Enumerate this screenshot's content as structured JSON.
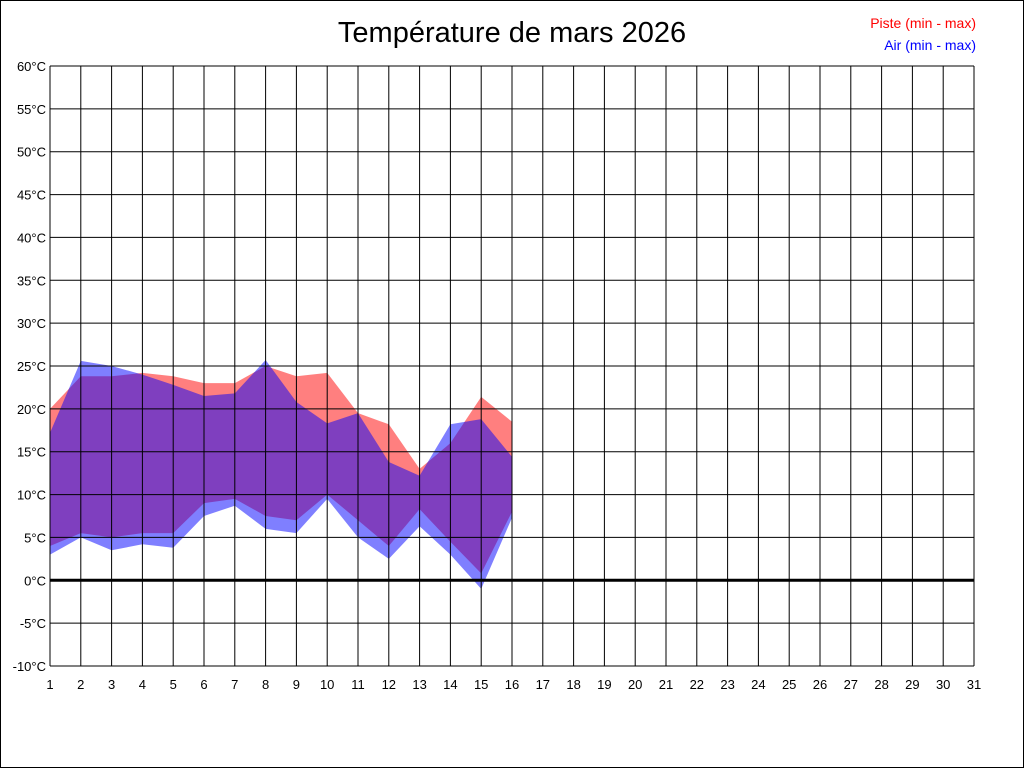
{
  "chart_data": {
    "type": "area",
    "title": "Température de mars 2026",
    "x": [
      1,
      2,
      3,
      4,
      5,
      6,
      7,
      8,
      9,
      10,
      11,
      12,
      13,
      14,
      15,
      16,
      17,
      18,
      19,
      20,
      21,
      22,
      23,
      24,
      25,
      26,
      27,
      28,
      29,
      30,
      31
    ],
    "x_tick_labels": [
      "1",
      "2",
      "3",
      "4",
      "5",
      "6",
      "7",
      "8",
      "9",
      "10",
      "11",
      "12",
      "13",
      "14",
      "15",
      "16",
      "17",
      "18",
      "19",
      "20",
      "21",
      "22",
      "23",
      "24",
      "25",
      "26",
      "27",
      "28",
      "29",
      "30",
      "31"
    ],
    "y_tick_labels": [
      "60°C",
      "55°C",
      "50°C",
      "45°C",
      "40°C",
      "35°C",
      "30°C",
      "25°C",
      "20°C",
      "15°C",
      "10°C",
      "5°C",
      "0°C",
      "-5°C",
      "-10°C"
    ],
    "ylim": [
      -10,
      60
    ],
    "xlim": [
      1,
      31
    ],
    "grid": true,
    "legend_position": "top-right",
    "series": [
      {
        "name": "Piste (min - max)",
        "color": "#ff0000",
        "min": [
          4,
          5.5,
          5,
          5.5,
          5.5,
          9,
          9.5,
          7.5,
          7,
          10,
          7,
          4,
          8.3,
          4.5,
          0.8,
          8
        ],
        "max": [
          20,
          23.8,
          23.8,
          24.2,
          23.8,
          23,
          23,
          25,
          23.8,
          24.2,
          19.5,
          18.2,
          13,
          16,
          21.4,
          18.5
        ]
      },
      {
        "name": "Air (min - max)",
        "color": "#0000ff",
        "min": [
          3,
          5,
          3.5,
          4.2,
          3.8,
          7.5,
          8.7,
          6,
          5.5,
          9.5,
          5,
          2.5,
          6.3,
          3,
          -1,
          7.3
        ],
        "max": [
          17.2,
          25.6,
          25,
          24,
          22.8,
          21.5,
          21.8,
          25.7,
          20.8,
          18.3,
          19.5,
          13.8,
          12.2,
          18.2,
          18.8,
          14.4
        ]
      }
    ]
  }
}
